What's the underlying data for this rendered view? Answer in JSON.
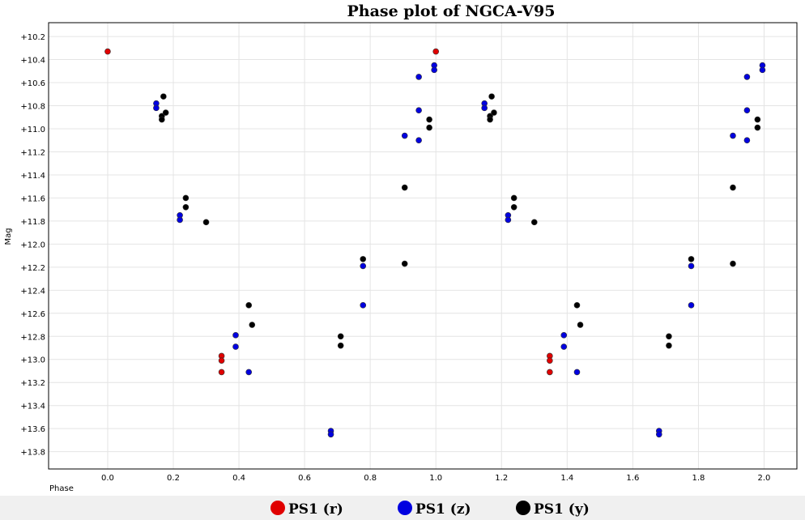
{
  "chart_data": {
    "type": "scatter",
    "title": "Phase plot of NGCA-V95",
    "xlabel": "Phase",
    "ylabel": "Mag",
    "xlim": [
      -0.18,
      2.1
    ],
    "ylim": [
      10.08,
      13.95
    ],
    "y_inverted": true,
    "x_ticks": [
      0.0,
      0.2,
      0.4,
      0.6,
      0.8,
      1.0,
      1.2,
      1.4,
      1.6,
      1.8,
      2.0
    ],
    "x_tick_labels": [
      "0.0",
      "0.2",
      "0.4",
      "0.6",
      "0.8",
      "1.0",
      "1.2",
      "1.4",
      "1.6",
      "1.8",
      "2.0"
    ],
    "y_ticks": [
      10.2,
      10.4,
      10.6,
      10.8,
      11.0,
      11.2,
      11.4,
      11.6,
      11.8,
      12.0,
      12.2,
      12.4,
      12.6,
      12.8,
      13.0,
      13.2,
      13.4,
      13.6,
      13.8
    ],
    "y_tick_labels": [
      "+10.2",
      "+10.4",
      "+10.6",
      "+10.8",
      "+11.0",
      "+11.2",
      "+11.4",
      "+11.6",
      "+11.8",
      "+12.0",
      "+12.2",
      "+12.4",
      "+12.6",
      "+12.8",
      "+13.0",
      "+13.2",
      "+13.4",
      "+13.6",
      "+13.8"
    ],
    "grid": true,
    "legend_position": "bottom",
    "series": [
      {
        "name": "PS1 (r)",
        "color": "#e00000",
        "points": [
          [
            0.0,
            10.33
          ],
          [
            0.347,
            12.97
          ],
          [
            0.347,
            13.01
          ],
          [
            0.347,
            13.11
          ],
          [
            1.0,
            10.33
          ],
          [
            1.347,
            12.97
          ],
          [
            1.347,
            13.01
          ],
          [
            1.347,
            13.11
          ]
        ]
      },
      {
        "name": "PS1 (z)",
        "color": "#0000e0",
        "points": [
          [
            0.148,
            10.78
          ],
          [
            0.148,
            10.82
          ],
          [
            0.22,
            11.75
          ],
          [
            0.22,
            11.79
          ],
          [
            0.39,
            12.79
          ],
          [
            0.39,
            12.89
          ],
          [
            0.43,
            13.11
          ],
          [
            0.68,
            13.62
          ],
          [
            0.68,
            13.65
          ],
          [
            0.778,
            12.19
          ],
          [
            0.778,
            12.53
          ],
          [
            0.905,
            11.06
          ],
          [
            0.948,
            10.55
          ],
          [
            0.948,
            10.84
          ],
          [
            0.948,
            11.1
          ],
          [
            0.995,
            10.45
          ],
          [
            0.995,
            10.49
          ],
          [
            1.148,
            10.78
          ],
          [
            1.148,
            10.82
          ],
          [
            1.22,
            11.75
          ],
          [
            1.22,
            11.79
          ],
          [
            1.39,
            12.79
          ],
          [
            1.39,
            12.89
          ],
          [
            1.43,
            13.11
          ],
          [
            1.68,
            13.62
          ],
          [
            1.68,
            13.65
          ],
          [
            1.778,
            12.19
          ],
          [
            1.778,
            12.53
          ],
          [
            1.905,
            11.06
          ],
          [
            1.948,
            10.55
          ],
          [
            1.948,
            10.84
          ],
          [
            1.948,
            11.1
          ],
          [
            1.995,
            10.45
          ],
          [
            1.995,
            10.49
          ]
        ]
      },
      {
        "name": "PS1 (y)",
        "color": "#000000",
        "points": [
          [
            0.165,
            10.89
          ],
          [
            0.165,
            10.92
          ],
          [
            0.17,
            10.72
          ],
          [
            0.177,
            10.86
          ],
          [
            0.238,
            11.6
          ],
          [
            0.238,
            11.68
          ],
          [
            0.3,
            11.81
          ],
          [
            0.43,
            12.53
          ],
          [
            0.44,
            12.7
          ],
          [
            0.71,
            12.8
          ],
          [
            0.71,
            12.88
          ],
          [
            0.778,
            12.13
          ],
          [
            0.905,
            11.51
          ],
          [
            0.905,
            12.17
          ],
          [
            0.98,
            10.92
          ],
          [
            0.98,
            10.99
          ],
          [
            1.165,
            10.89
          ],
          [
            1.165,
            10.92
          ],
          [
            1.17,
            10.72
          ],
          [
            1.177,
            10.86
          ],
          [
            1.238,
            11.6
          ],
          [
            1.238,
            11.68
          ],
          [
            1.3,
            11.81
          ],
          [
            1.43,
            12.53
          ],
          [
            1.44,
            12.7
          ],
          [
            1.71,
            12.8
          ],
          [
            1.71,
            12.88
          ],
          [
            1.778,
            12.13
          ],
          [
            1.905,
            11.51
          ],
          [
            1.905,
            12.17
          ],
          [
            1.98,
            10.92
          ],
          [
            1.98,
            10.99
          ]
        ]
      }
    ]
  }
}
